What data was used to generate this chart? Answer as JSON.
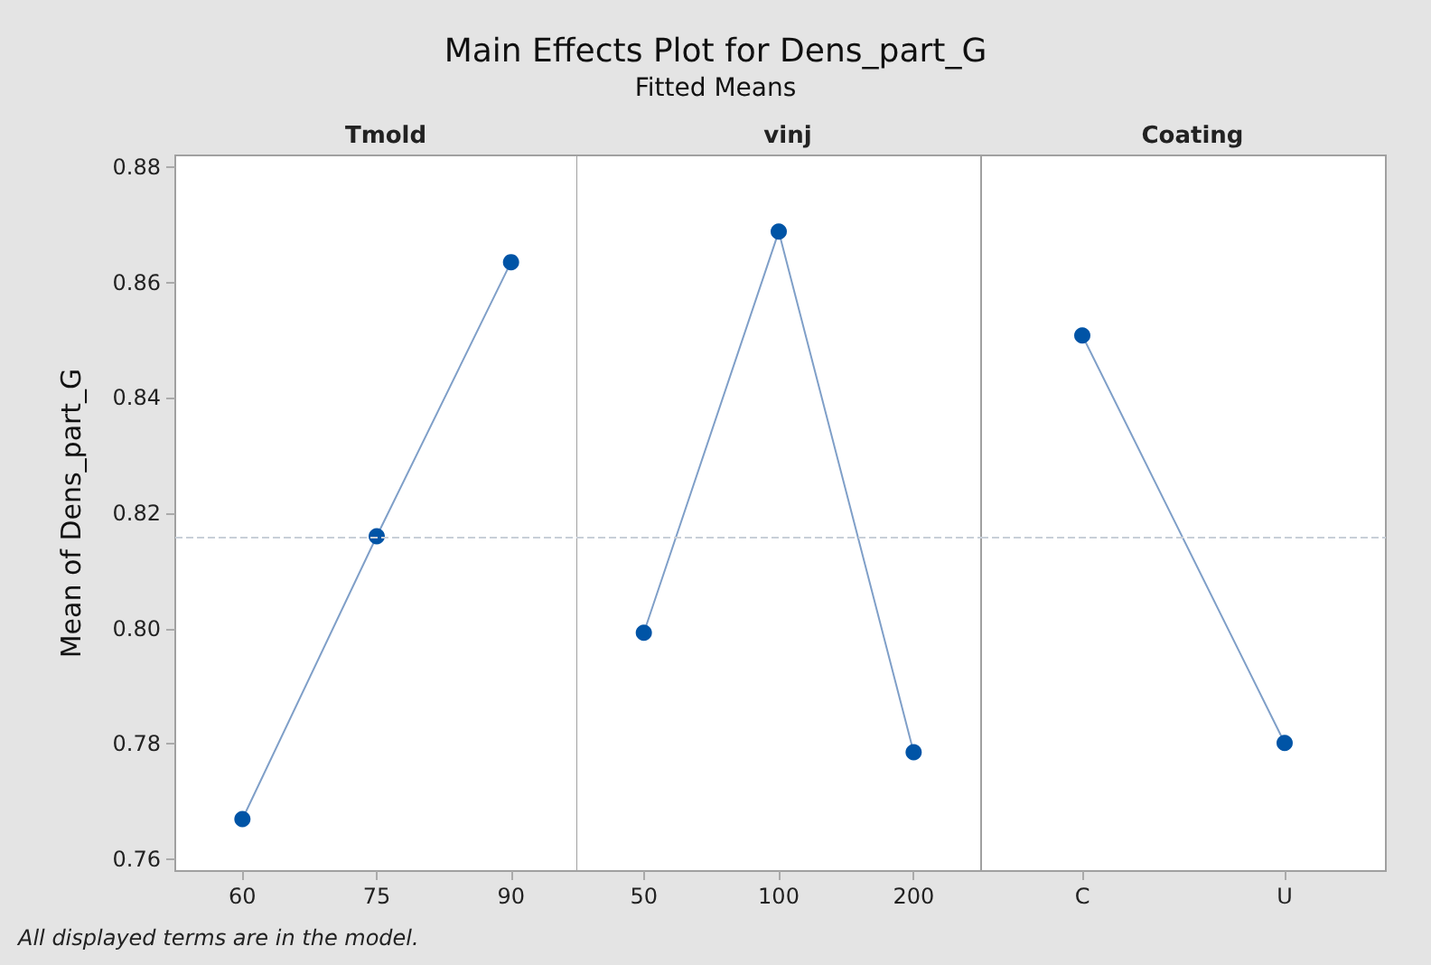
{
  "chart_data": [
    {
      "type": "line",
      "xlabel": "Tmold",
      "ylabel": "Mean of Dens_part_G",
      "annotations": [
        "All displayed terms are in the model."
      ],
      "categories": [
        "60",
        "75",
        "90"
      ],
      "series": [
        {
          "color": "#0054a6",
          "values": [
            0.767,
            0.816,
            0.8635
          ]
        }
      ],
      "ylim": [
        0.758,
        0.882
      ],
      "yticks": [
        {
          "value": 0.76,
          "label": "0.76"
        },
        {
          "value": 0.78,
          "label": "0.78"
        },
        {
          "value": 0.8,
          "label": "0.80"
        },
        {
          "value": 0.82,
          "label": "0.82"
        },
        {
          "value": 0.84,
          "label": "0.84"
        },
        {
          "value": 0.86,
          "label": "0.86"
        },
        {
          "value": 0.88,
          "label": "0.88"
        }
      ],
      "marker": "circle",
      "grid": false,
      "ref_lines": [
        {
          "axis": "y",
          "value": 0.816,
          "color": "#c8cfd8",
          "line_style": "dashed"
        }
      ]
    },
    {
      "type": "line",
      "title": "Main Effects Plot for Dens_part_G",
      "subtitle": "Fitted Means",
      "xlabel": "vinj",
      "categories": [
        "50",
        "100",
        "200"
      ],
      "series": [
        {
          "color": "#0054a6",
          "values": [
            0.7993,
            0.8688,
            0.7786
          ]
        }
      ],
      "ylim": [
        0.758,
        0.882
      ],
      "tick_labels": "x",
      "marker": "circle",
      "grid": false,
      "ref_lines": [
        {
          "axis": "y",
          "value": 0.816,
          "color": "#c8cfd8",
          "line_style": "dashed"
        }
      ]
    },
    {
      "type": "line",
      "xlabel": "Coating",
      "categories": [
        "C",
        "U"
      ],
      "series": [
        {
          "color": "#0054a6",
          "values": [
            0.8508,
            0.7802
          ]
        }
      ],
      "ylim": [
        0.758,
        0.882
      ],
      "tick_labels": "x",
      "marker": "circle",
      "grid": false,
      "ref_lines": [
        {
          "axis": "y",
          "value": 0.816,
          "color": "#c8cfd8",
          "line_style": "dashed"
        }
      ]
    }
  ]
}
